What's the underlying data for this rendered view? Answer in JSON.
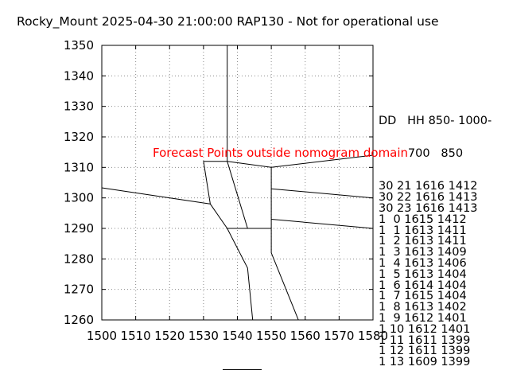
{
  "title": "Rocky_Mount 2025-04-30 21:00:00 RAP130 - Not for operational use",
  "annotation": {
    "text": "Forecast Points outside nomogram domain",
    "color": "#ff0000"
  },
  "table": {
    "header_line1": "DD   HH 850- 1000-",
    "header_line2": "        700   850",
    "rows": [
      "30 21 1616 1412",
      "30 22 1616 1413",
      "30 23 1616 1413",
      "1  0 1615 1412",
      "1  1 1613 1411",
      "1  2 1613 1411",
      "1  3 1613 1409",
      "1  4 1613 1406",
      "1  5 1613 1404",
      "1  6 1614 1404",
      "1  7 1615 1404",
      "1  8 1613 1402",
      "1  9 1612 1401",
      "1 10 1612 1401",
      "1 11 1611 1399",
      "1 12 1611 1399",
      "1 13 1609 1399"
    ]
  },
  "chart_data": {
    "type": "line",
    "title": "Rocky_Mount 2025-04-30 21:00:00 RAP130 - Not for operational use",
    "xlabel": "",
    "ylabel": "",
    "xlim": [
      1500,
      1580
    ],
    "ylim": [
      1260,
      1350
    ],
    "xticks": [
      1500,
      1510,
      1520,
      1530,
      1540,
      1550,
      1560,
      1570,
      1580
    ],
    "yticks": [
      1260,
      1270,
      1280,
      1290,
      1300,
      1310,
      1320,
      1330,
      1340,
      1350
    ],
    "grid": true,
    "series": [
      {
        "x": [
          1500,
          1532,
          1530,
          1537
        ],
        "y": [
          1303.3,
          1298,
          1312,
          1312
        ]
      },
      {
        "x": [
          1537,
          1537
        ],
        "y": [
          1350,
          1312
        ]
      },
      {
        "x": [
          1537,
          1550,
          1580
        ],
        "y": [
          1312,
          1310,
          1314
        ]
      },
      {
        "x": [
          1537,
          1543,
          1550
        ],
        "y": [
          1312,
          1290,
          1290
        ]
      },
      {
        "x": [
          1550,
          1550
        ],
        "y": [
          1310,
          1282
        ]
      },
      {
        "x": [
          1550,
          1580
        ],
        "y": [
          1303,
          1300
        ]
      },
      {
        "x": [
          1550,
          1580
        ],
        "y": [
          1293,
          1290
        ]
      },
      {
        "x": [
          1532,
          1537,
          1543,
          1544.5
        ],
        "y": [
          1298,
          1290,
          1277,
          1260
        ]
      },
      {
        "x": [
          1537,
          1550
        ],
        "y": [
          1290,
          1290
        ]
      },
      {
        "x": [
          1550,
          1558
        ],
        "y": [
          1282,
          1260
        ]
      }
    ]
  }
}
